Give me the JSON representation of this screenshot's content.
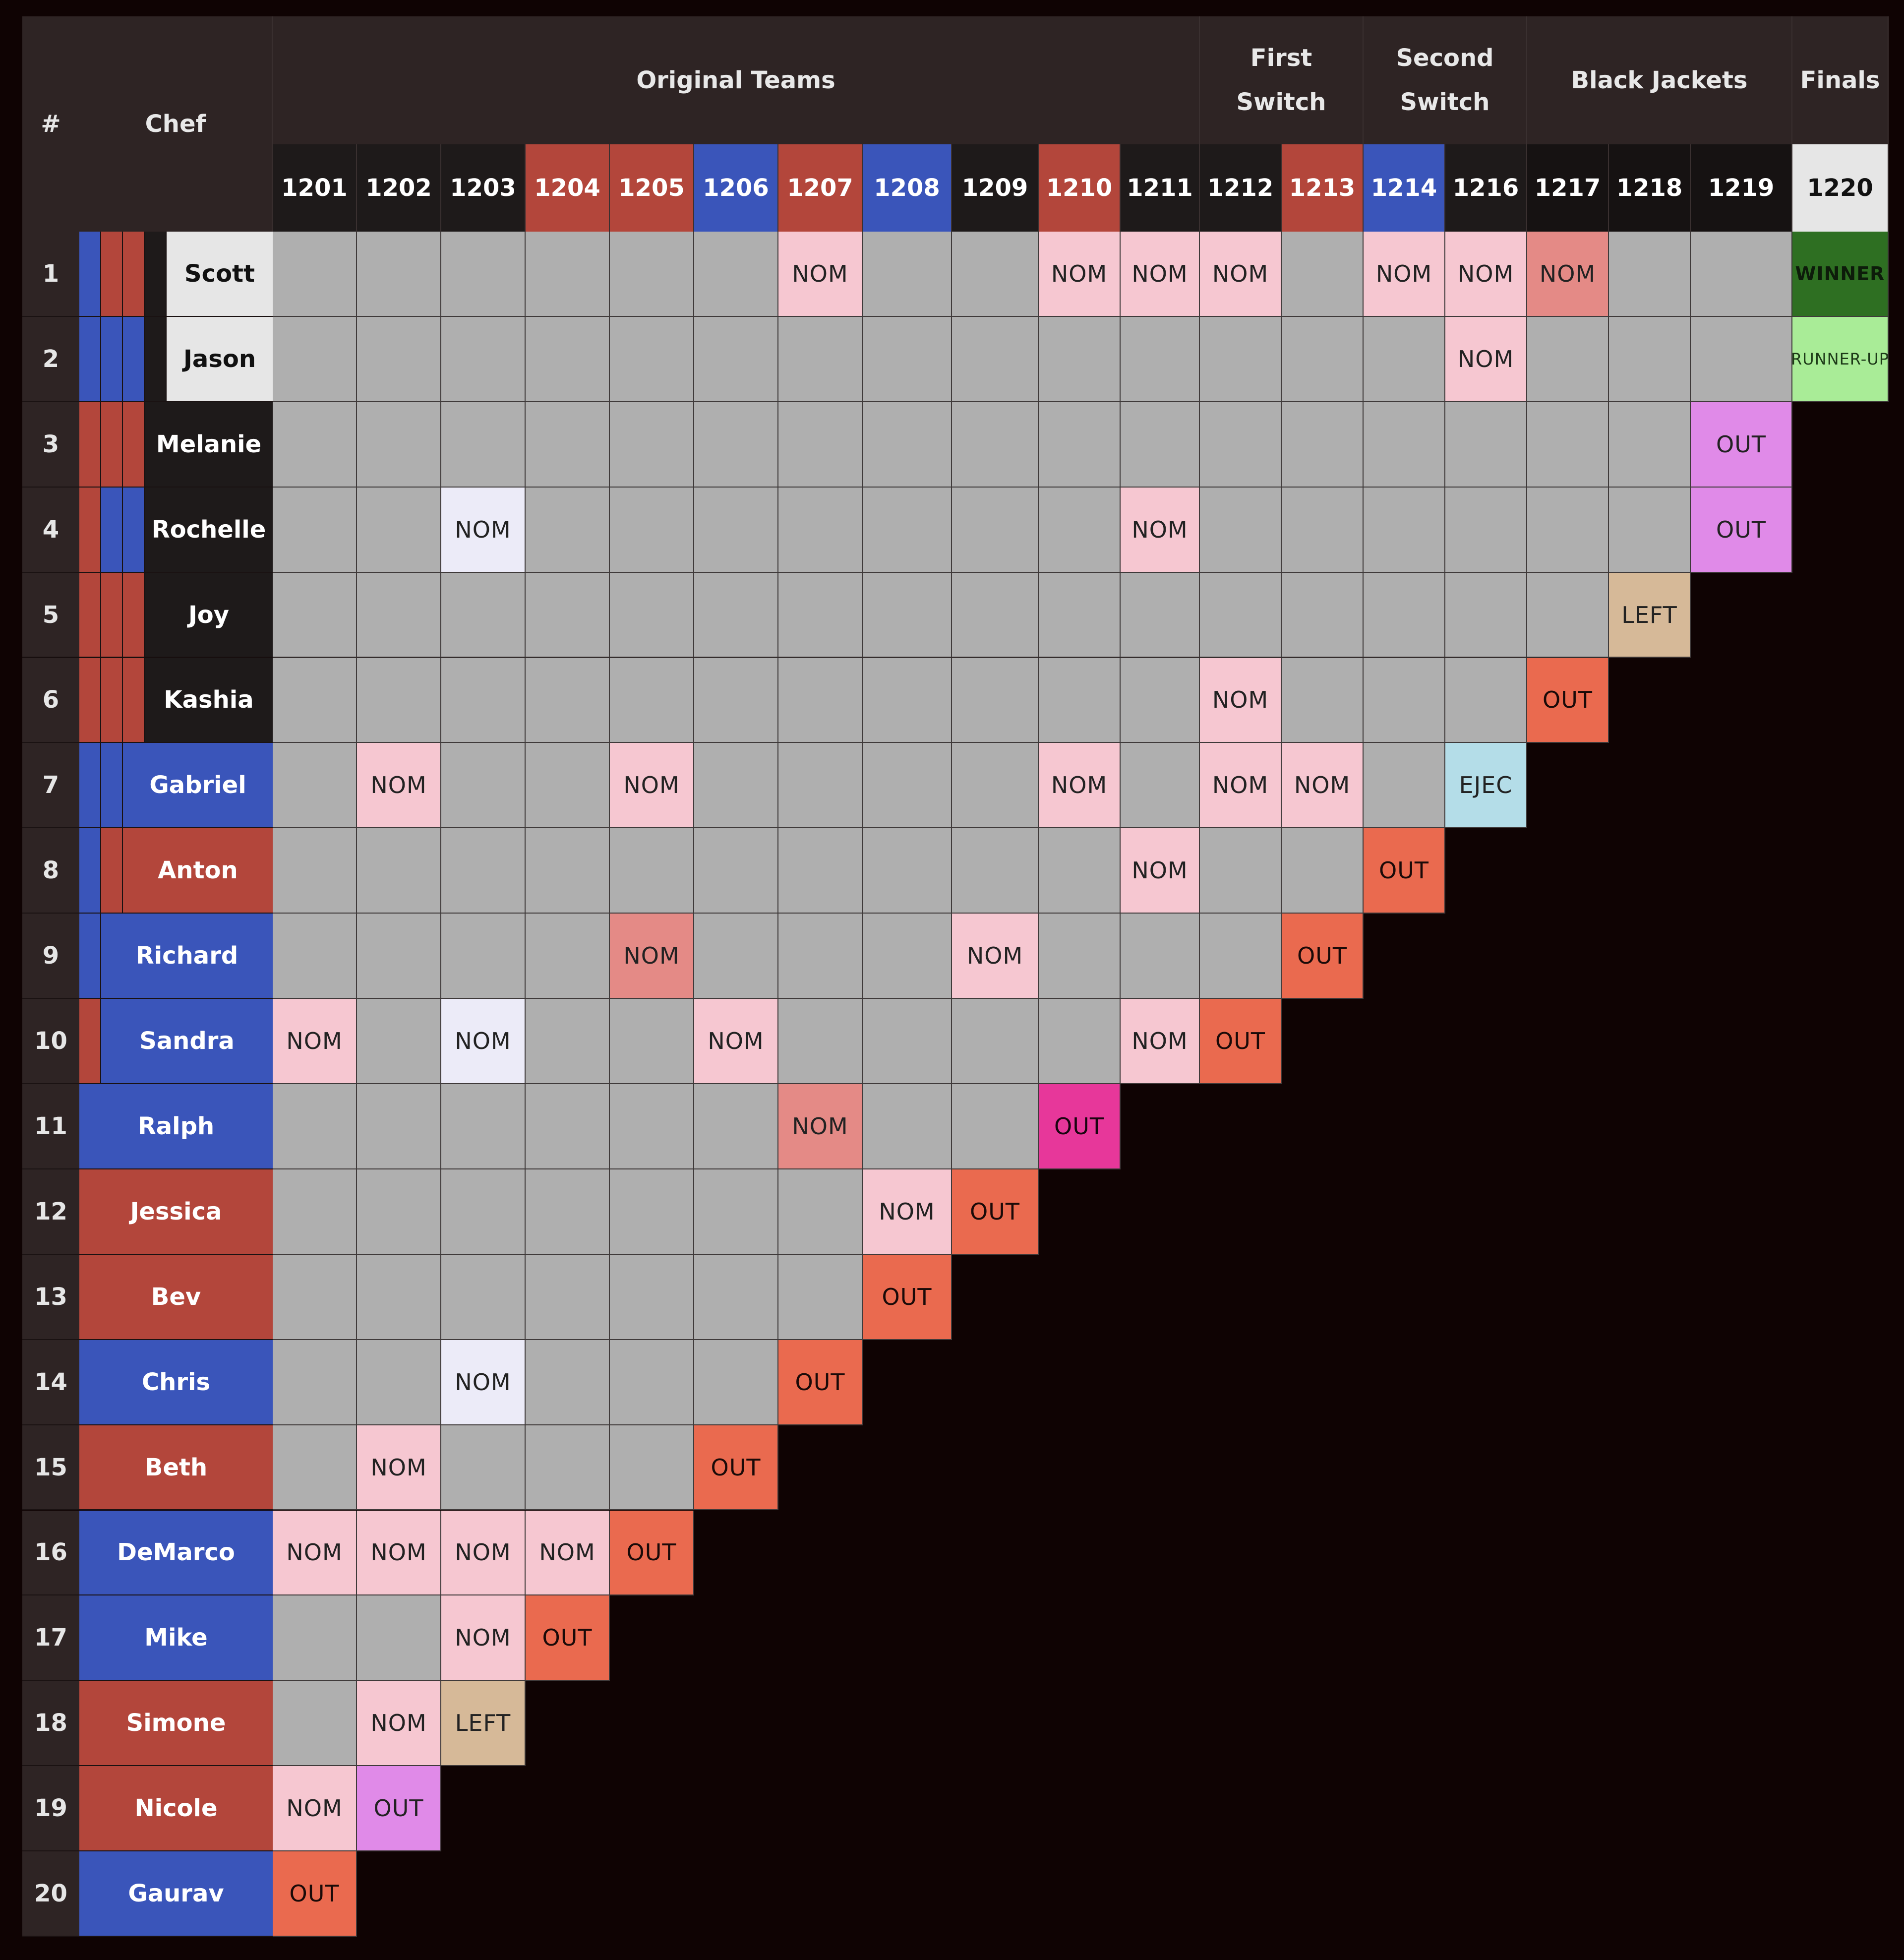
{
  "table": {
    "corner_label": "#",
    "chef_label": "Chef",
    "groups": [
      {
        "label": "Original Teams",
        "span": 11
      },
      {
        "label": "First\nSwitch",
        "span": 2
      },
      {
        "label": "Second\nSwitch",
        "span": 2
      },
      {
        "label": "Black Jackets",
        "span": 3
      },
      {
        "label": "Finals",
        "span": 1
      }
    ],
    "episodes": [
      {
        "label": "1201",
        "team": "black"
      },
      {
        "label": "1202",
        "team": "black"
      },
      {
        "label": "1203",
        "team": "black"
      },
      {
        "label": "1204",
        "team": "red"
      },
      {
        "label": "1205",
        "team": "red"
      },
      {
        "label": "1206",
        "team": "blue"
      },
      {
        "label": "1207",
        "team": "red"
      },
      {
        "label": "1208",
        "team": "blue"
      },
      {
        "label": "1209",
        "team": "black"
      },
      {
        "label": "1210",
        "team": "red"
      },
      {
        "label": "1211",
        "team": "black"
      },
      {
        "label": "1212",
        "team": "black"
      },
      {
        "label": "1213",
        "team": "red"
      },
      {
        "label": "1214",
        "team": "blue"
      },
      {
        "label": "1216",
        "team": "black"
      },
      {
        "label": "1217",
        "team": "jacket"
      },
      {
        "label": "1218",
        "team": "jacket"
      },
      {
        "label": "1219",
        "team": "jacket"
      },
      {
        "label": "1220",
        "team": "final"
      }
    ],
    "rows": [
      {
        "num": "1",
        "name": "Scott",
        "bars": [
          "blue",
          "red",
          "red",
          "black"
        ],
        "name_style": "final",
        "results": [
          "",
          "",
          "",
          "",
          "",
          "",
          "NOM",
          "",
          "",
          "NOM",
          "NOM",
          "NOM",
          "",
          "NOM",
          "NOM",
          "NOM-DARK",
          "",
          "",
          "WINNER"
        ]
      },
      {
        "num": "2",
        "name": "Jason",
        "bars": [
          "blue",
          "blue",
          "blue",
          "black"
        ],
        "name_style": "final",
        "results": [
          "",
          "",
          "",
          "",
          "",
          "",
          "",
          "",
          "",
          "",
          "",
          "",
          "",
          "",
          "NOM",
          "",
          "",
          "",
          "RUNNER-UP"
        ]
      },
      {
        "num": "3",
        "name": "Melanie",
        "bars": [
          "red",
          "red",
          "red"
        ],
        "name_style": "black",
        "results": [
          "",
          "",
          "",
          "",
          "",
          "",
          "",
          "",
          "",
          "",
          "",
          "",
          "",
          "",
          "",
          "",
          "",
          "OUT-PURPLE"
        ]
      },
      {
        "num": "4",
        "name": "Rochelle",
        "bars": [
          "red",
          "blue",
          "blue"
        ],
        "name_style": "black",
        "results": [
          "",
          "",
          "NOM-LAV",
          "",
          "",
          "",
          "",
          "",
          "",
          "",
          "NOM",
          "",
          "",
          "",
          "",
          "",
          "",
          "OUT-PURPLE"
        ]
      },
      {
        "num": "5",
        "name": "Joy",
        "bars": [
          "red",
          "red",
          "red"
        ],
        "name_style": "black",
        "results": [
          "",
          "",
          "",
          "",
          "",
          "",
          "",
          "",
          "",
          "",
          "",
          "",
          "",
          "",
          "",
          "",
          "LEFT"
        ]
      },
      {
        "num": "6",
        "name": "Kashia",
        "bars": [
          "red",
          "red",
          "red"
        ],
        "name_style": "black",
        "results": [
          "",
          "",
          "",
          "",
          "",
          "",
          "",
          "",
          "",
          "",
          "",
          "NOM",
          "",
          "",
          "",
          "OUT"
        ]
      },
      {
        "num": "7",
        "name": "Gabriel",
        "bars": [
          "blue",
          "blue"
        ],
        "name_style": "blue",
        "results": [
          "",
          "NOM",
          "",
          "",
          "NOM",
          "",
          "",
          "",
          "",
          "NOM",
          "",
          "NOM",
          "NOM",
          "",
          "EJEC"
        ]
      },
      {
        "num": "8",
        "name": "Anton",
        "bars": [
          "blue",
          "red"
        ],
        "name_style": "red",
        "results": [
          "",
          "",
          "",
          "",
          "",
          "",
          "",
          "",
          "",
          "",
          "NOM",
          "",
          "",
          "OUT"
        ]
      },
      {
        "num": "9",
        "name": "Richard",
        "bars": [
          "blue"
        ],
        "name_style": "blue",
        "results": [
          "",
          "",
          "",
          "",
          "NOM-DARK",
          "",
          "",
          "",
          "NOM",
          "",
          "",
          "",
          "OUT"
        ]
      },
      {
        "num": "10",
        "name": "Sandra",
        "bars": [
          "red"
        ],
        "name_style": "blue",
        "results": [
          "NOM",
          "",
          "NOM-LAV",
          "",
          "",
          "NOM",
          "",
          "",
          "",
          "",
          "NOM",
          "OUT"
        ]
      },
      {
        "num": "11",
        "name": "Ralph",
        "bars": [],
        "name_style": "blue",
        "results": [
          "",
          "",
          "",
          "",
          "",
          "",
          "NOM-DARK",
          "",
          "",
          "OUT-MAGENTA"
        ]
      },
      {
        "num": "12",
        "name": "Jessica",
        "bars": [],
        "name_style": "red",
        "results": [
          "",
          "",
          "",
          "",
          "",
          "",
          "",
          "NOM",
          "OUT"
        ]
      },
      {
        "num": "13",
        "name": "Bev",
        "bars": [],
        "name_style": "red",
        "results": [
          "",
          "",
          "",
          "",
          "",
          "",
          "",
          "OUT"
        ]
      },
      {
        "num": "14",
        "name": "Chris",
        "bars": [],
        "name_style": "blue",
        "results": [
          "",
          "",
          "NOM-LAV",
          "",
          "",
          "",
          "OUT"
        ]
      },
      {
        "num": "15",
        "name": "Beth",
        "bars": [],
        "name_style": "red",
        "results": [
          "",
          "NOM",
          "",
          "",
          "",
          "OUT"
        ]
      },
      {
        "num": "16",
        "name": "DeMarco",
        "bars": [],
        "name_style": "blue",
        "results": [
          "NOM",
          "NOM",
          "NOM",
          "NOM",
          "OUT"
        ]
      },
      {
        "num": "17",
        "name": "Mike",
        "bars": [],
        "name_style": "blue",
        "results": [
          "",
          "",
          "NOM",
          "OUT"
        ]
      },
      {
        "num": "18",
        "name": "Simone",
        "bars": [],
        "name_style": "red",
        "results": [
          "",
          "NOM",
          "LEFT"
        ]
      },
      {
        "num": "19",
        "name": "Nicole",
        "bars": [],
        "name_style": "red",
        "results": [
          "NOM",
          "OUT-PURPLE"
        ]
      },
      {
        "num": "20",
        "name": "Gaurav",
        "bars": [],
        "name_style": "blue",
        "results": [
          "OUT"
        ]
      }
    ]
  },
  "colors": {
    "page_bg": "#0f0303",
    "header_bg": "#2e2424",
    "team_red": "#b3463b",
    "team_blue": "#3a55ba",
    "team_black": "#1e1a1a",
    "final_name_bg": "#e6e6e6",
    "cell_gray": "#afafaf",
    "nom": "#f6c7d1",
    "nom_dark": "#e48a86",
    "nom_lav": "#ecebf8",
    "out": "#ea6a4f",
    "out_purple": "#e08ae8",
    "out_magenta": "#e7379a",
    "left": "#d6b998",
    "ejec": "#b4dde8",
    "winner": "#2e6f22",
    "runner_up": "#a9ec97"
  }
}
